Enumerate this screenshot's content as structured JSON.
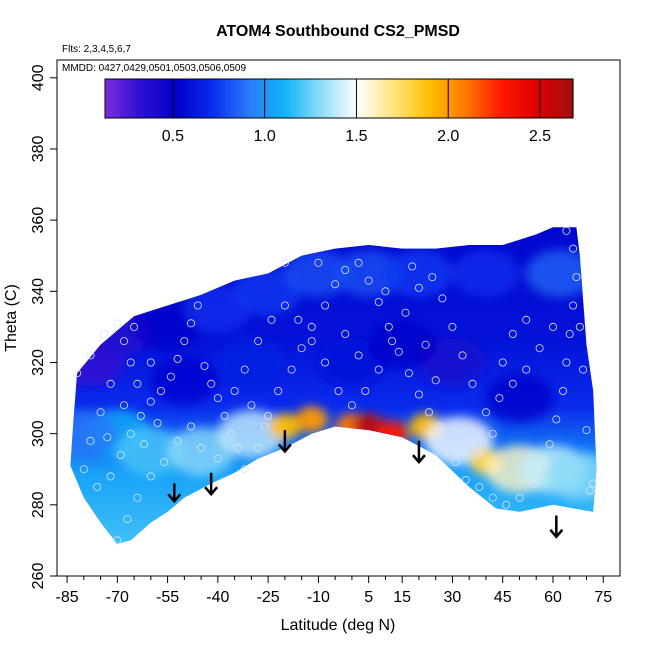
{
  "chart_data": {
    "type": "heatmap",
    "title": "ATOM4 Southbound CS2_PMSD",
    "flights_note": "Flts: 2,3,4,5,6,7",
    "dates_note": "MMDD: 0427,0429,0501,0503,0506,0509",
    "xlabel": "Latitude (deg N)",
    "ylabel": "Theta (C)",
    "xlim": [
      -88,
      80
    ],
    "ylim": [
      260,
      405
    ],
    "x_ticks": [
      -85,
      -70,
      -55,
      -40,
      -25,
      -10,
      5,
      15,
      30,
      45,
      60,
      75
    ],
    "x_tick_labels": [
      "-85",
      "-70",
      "-55",
      "-40",
      "-25",
      "-10",
      "5",
      "15",
      "30",
      "45",
      "60",
      "75"
    ],
    "y_ticks": [
      260,
      280,
      300,
      320,
      340,
      360,
      380,
      400
    ],
    "y_tick_labels": [
      "260",
      "280",
      "300",
      "320",
      "340",
      "360",
      "380",
      "400"
    ],
    "colorbar": {
      "min": 0.13,
      "max": 2.68,
      "ticks": [
        0.5,
        1.0,
        1.5,
        2.0,
        2.5
      ],
      "tick_labels": [
        "0.5",
        "1.0",
        "1.5",
        "2.0",
        "2.5"
      ],
      "colors": [
        "#7b2de0",
        "#2b0fd0",
        "#0000c8",
        "#0a2ef0",
        "#2b7bf8",
        "#10b4f8",
        "#8fdcf8",
        "#ffffff",
        "#ffe680",
        "#ffc000",
        "#ff7a00",
        "#ff1a00",
        "#dd0000",
        "#a01010"
      ]
    },
    "boundary_top": [
      [
        -82,
        317
      ],
      [
        -75,
        325
      ],
      [
        -65,
        333
      ],
      [
        -55,
        336
      ],
      [
        -45,
        339
      ],
      [
        -35,
        343
      ],
      [
        -25,
        345
      ],
      [
        -15,
        350
      ],
      [
        -5,
        352
      ],
      [
        5,
        353
      ],
      [
        15,
        352
      ],
      [
        25,
        352
      ],
      [
        35,
        353
      ],
      [
        45,
        353
      ],
      [
        55,
        356
      ],
      [
        60,
        358
      ],
      [
        67,
        358
      ],
      [
        68,
        350
      ],
      [
        70,
        325
      ],
      [
        72,
        312
      ],
      [
        73,
        290
      ],
      [
        72,
        278
      ]
    ],
    "boundary_bottom_curve": [
      [
        72,
        278
      ],
      [
        60,
        280
      ],
      [
        50,
        278
      ],
      [
        43,
        279
      ],
      [
        35,
        285
      ],
      [
        25,
        294
      ],
      [
        15,
        299
      ],
      [
        5,
        301
      ],
      [
        -5,
        302
      ],
      [
        -12,
        300
      ],
      [
        -20,
        296
      ],
      [
        -28,
        293
      ],
      [
        -35,
        289
      ],
      [
        -42,
        286
      ],
      [
        -50,
        282
      ],
      [
        -55,
        278
      ],
      [
        -60,
        275
      ],
      [
        -66,
        270
      ],
      [
        -70,
        269
      ],
      [
        -75,
        275
      ],
      [
        -80,
        282
      ],
      [
        -84,
        291
      ],
      [
        -83,
        305
      ],
      [
        -82,
        317
      ]
    ],
    "anomaly_arrows": [
      {
        "lat": -53,
        "theta_from": 286,
        "theta_to": 281
      },
      {
        "lat": -42,
        "theta_from": 289,
        "theta_to": 283
      },
      {
        "lat": -20,
        "theta_from": 301,
        "theta_to": 295
      },
      {
        "lat": 20,
        "theta_from": 298,
        "theta_to": 292
      },
      {
        "lat": 61,
        "theta_from": 277,
        "theta_to": 271
      }
    ],
    "field_features": [
      {
        "lat": -78,
        "theta": 320,
        "value": 0.3
      },
      {
        "lat": -70,
        "theta": 328,
        "value": 0.35
      },
      {
        "lat": -55,
        "theta": 330,
        "value": 0.5
      },
      {
        "lat": -40,
        "theta": 335,
        "value": 0.7
      },
      {
        "lat": -25,
        "theta": 340,
        "value": 0.75
      },
      {
        "lat": -10,
        "theta": 345,
        "value": 0.8
      },
      {
        "lat": 5,
        "theta": 345,
        "value": 0.8
      },
      {
        "lat": 20,
        "theta": 345,
        "value": 0.75
      },
      {
        "lat": 40,
        "theta": 345,
        "value": 0.7
      },
      {
        "lat": 62,
        "theta": 345,
        "value": 0.85
      },
      {
        "lat": -70,
        "theta": 300,
        "value": 1.1
      },
      {
        "lat": -60,
        "theta": 295,
        "value": 1.2
      },
      {
        "lat": -45,
        "theta": 295,
        "value": 1.3
      },
      {
        "lat": -30,
        "theta": 300,
        "value": 1.4
      },
      {
        "lat": -20,
        "theta": 302,
        "value": 1.9
      },
      {
        "lat": -12,
        "theta": 304,
        "value": 2.0
      },
      {
        "lat": 0,
        "theta": 302,
        "value": 2.1
      },
      {
        "lat": 5,
        "theta": 302,
        "value": 2.6
      },
      {
        "lat": 12,
        "theta": 300,
        "value": 2.3
      },
      {
        "lat": 22,
        "theta": 302,
        "value": 1.9
      },
      {
        "lat": 32,
        "theta": 298,
        "value": 1.5
      },
      {
        "lat": 40,
        "theta": 292,
        "value": 1.8
      },
      {
        "lat": 50,
        "theta": 290,
        "value": 1.6
      },
      {
        "lat": 60,
        "theta": 290,
        "value": 1.4
      },
      {
        "lat": 68,
        "theta": 288,
        "value": 1.3
      },
      {
        "lat": -80,
        "theta": 300,
        "value": 0.9
      },
      {
        "lat": 30,
        "theta": 320,
        "value": 0.4
      },
      {
        "lat": 50,
        "theta": 310,
        "value": 0.5
      },
      {
        "lat": -50,
        "theta": 315,
        "value": 0.55
      },
      {
        "lat": 0,
        "theta": 320,
        "value": 0.6
      },
      {
        "lat": -30,
        "theta": 320,
        "value": 0.65
      },
      {
        "lat": 15,
        "theta": 325,
        "value": 0.5
      }
    ],
    "sample_points": [
      [
        -82,
        317
      ],
      [
        -78,
        322
      ],
      [
        -74,
        328
      ],
      [
        -70,
        331
      ],
      [
        -68,
        326
      ],
      [
        -66,
        320
      ],
      [
        -72,
        314
      ],
      [
        -75,
        306
      ],
      [
        -78,
        298
      ],
      [
        -80,
        290
      ],
      [
        -76,
        285
      ],
      [
        -72,
        288
      ],
      [
        -69,
        294
      ],
      [
        -66,
        300
      ],
      [
        -63,
        305
      ],
      [
        -60,
        309
      ],
      [
        -57,
        312
      ],
      [
        -54,
        316
      ],
      [
        -52,
        321
      ],
      [
        -50,
        326
      ],
      [
        -48,
        331
      ],
      [
        -46,
        336
      ],
      [
        -44,
        319
      ],
      [
        -42,
        314
      ],
      [
        -40,
        310
      ],
      [
        -38,
        305
      ],
      [
        -36,
        300
      ],
      [
        -34,
        296
      ],
      [
        -48,
        302
      ],
      [
        -52,
        298
      ],
      [
        -56,
        292
      ],
      [
        -60,
        288
      ],
      [
        -64,
        282
      ],
      [
        -67,
        276
      ],
      [
        -70,
        270
      ],
      [
        -62,
        297
      ],
      [
        -58,
        303
      ],
      [
        -45,
        296
      ],
      [
        -40,
        293
      ],
      [
        -32,
        290
      ],
      [
        -28,
        296
      ],
      [
        -25,
        305
      ],
      [
        -22,
        312
      ],
      [
        -18,
        318
      ],
      [
        -15,
        324
      ],
      [
        -12,
        330
      ],
      [
        -8,
        336
      ],
      [
        -5,
        342
      ],
      [
        -2,
        346
      ],
      [
        2,
        348
      ],
      [
        5,
        343
      ],
      [
        8,
        337
      ],
      [
        11,
        330
      ],
      [
        14,
        323
      ],
      [
        17,
        317
      ],
      [
        20,
        311
      ],
      [
        23,
        306
      ],
      [
        26,
        302
      ],
      [
        28,
        297
      ],
      [
        31,
        292
      ],
      [
        34,
        287
      ],
      [
        38,
        285
      ],
      [
        42,
        282
      ],
      [
        46,
        280
      ],
      [
        50,
        282
      ],
      [
        54,
        286
      ],
      [
        57,
        291
      ],
      [
        59,
        297
      ],
      [
        61,
        304
      ],
      [
        63,
        312
      ],
      [
        64,
        320
      ],
      [
        65,
        328
      ],
      [
        66,
        336
      ],
      [
        67,
        344
      ],
      [
        66,
        352
      ],
      [
        64,
        357
      ],
      [
        60,
        330
      ],
      [
        56,
        324
      ],
      [
        52,
        318
      ],
      [
        48,
        314
      ],
      [
        44,
        310
      ],
      [
        40,
        306
      ],
      [
        36,
        314
      ],
      [
        33,
        322
      ],
      [
        30,
        330
      ],
      [
        27,
        338
      ],
      [
        24,
        344
      ],
      [
        20,
        341
      ],
      [
        16,
        334
      ],
      [
        12,
        326
      ],
      [
        8,
        318
      ],
      [
        4,
        312
      ],
      [
        0,
        308
      ],
      [
        -4,
        312
      ],
      [
        -8,
        320
      ],
      [
        -12,
        326
      ],
      [
        -16,
        332
      ],
      [
        -20,
        336
      ],
      [
        -24,
        332
      ],
      [
        -28,
        326
      ],
      [
        -32,
        318
      ],
      [
        -35,
        312
      ],
      [
        -30,
        308
      ],
      [
        -26,
        302
      ],
      [
        -60,
        320
      ],
      [
        -64,
        314
      ],
      [
        -68,
        308
      ],
      [
        -73,
        299
      ],
      [
        -65,
        330
      ],
      [
        71,
        284
      ],
      [
        72,
        286
      ],
      [
        70,
        301
      ],
      [
        69,
        318
      ],
      [
        68,
        330
      ],
      [
        35,
        298
      ],
      [
        38,
        294
      ],
      [
        42,
        300
      ],
      [
        45,
        320
      ],
      [
        48,
        328
      ],
      [
        52,
        332
      ],
      [
        25,
        315
      ],
      [
        22,
        325
      ],
      [
        18,
        347
      ],
      [
        10,
        340
      ],
      [
        -20,
        348
      ],
      [
        -10,
        348
      ],
      [
        -2,
        328
      ],
      [
        2,
        322
      ]
    ]
  }
}
